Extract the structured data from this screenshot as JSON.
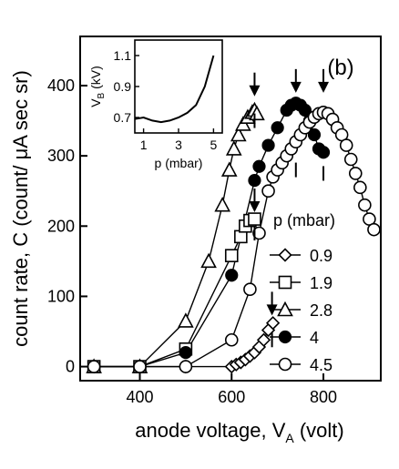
{
  "chart_data": [
    {
      "type": "scatter",
      "panel_label": "(b)",
      "xlabel": "anode voltage, V",
      "xlabel_sub": "A",
      "xlabel_unit": "(volt)",
      "ylabel": "count rate, C (count/ μA sec sr)",
      "xlim": [
        270,
        925
      ],
      "ylim": [
        -20,
        470
      ],
      "xticks": [
        400,
        600,
        800
      ],
      "yticks": [
        0,
        100,
        200,
        300,
        400
      ],
      "legend": {
        "title": "p (mbar)",
        "position": "right"
      },
      "series": [
        {
          "name": "0.9",
          "marker": "diamond-open",
          "x": [
            300,
            400,
            500,
            600,
            610,
            620,
            630,
            640,
            650,
            660,
            670,
            680,
            690
          ],
          "y": [
            0,
            0,
            0,
            0,
            3,
            6,
            10,
            15,
            20,
            28,
            38,
            52,
            62
          ],
          "arrow_x": 688,
          "arrow_y": 78,
          "errbar": {
            "x": 688,
            "y": 38
          }
        },
        {
          "name": "1.9",
          "marker": "square-open",
          "x": [
            300,
            400,
            500,
            600,
            620,
            630,
            640,
            650
          ],
          "y": [
            0,
            0,
            25,
            158,
            185,
            200,
            208,
            210
          ],
          "arrow_x": 650,
          "arrow_y": 225,
          "errbar": {
            "x": 650,
            "y": 190
          }
        },
        {
          "name": "2.8",
          "marker": "triangle-open",
          "x": [
            300,
            400,
            500,
            550,
            580,
            595,
            605,
            615,
            625,
            635,
            645,
            650,
            655
          ],
          "y": [
            0,
            0,
            65,
            150,
            230,
            280,
            310,
            330,
            345,
            355,
            362,
            365,
            360
          ],
          "arrow_x": 650,
          "arrow_y": 390,
          "errbar": {
            "x": 650,
            "y": 350
          }
        },
        {
          "name": "4",
          "marker": "circle-filled",
          "x": [
            300,
            400,
            500,
            600,
            650,
            660,
            680,
            700,
            720,
            730,
            740,
            750,
            760,
            770,
            780,
            790,
            800
          ],
          "y": [
            0,
            0,
            20,
            130,
            265,
            285,
            315,
            340,
            365,
            372,
            375,
            372,
            365,
            350,
            330,
            310,
            305
          ],
          "arrow_x": 740,
          "arrow_y": 395,
          "errbar": {
            "x": 740,
            "y": 280
          }
        },
        {
          "name": "4.5",
          "marker": "circle-open",
          "x": [
            300,
            400,
            500,
            600,
            640,
            660,
            680,
            690,
            700,
            710,
            720,
            730,
            740,
            750,
            760,
            770,
            780,
            790,
            800,
            810,
            820,
            830,
            840,
            850,
            860,
            870,
            880,
            890,
            900,
            910
          ],
          "y": [
            0,
            0,
            0,
            38,
            110,
            190,
            250,
            270,
            280,
            290,
            300,
            310,
            320,
            330,
            340,
            348,
            355,
            360,
            362,
            360,
            352,
            340,
            330,
            315,
            295,
            275,
            255,
            230,
            210,
            195
          ],
          "arrow_x": 800,
          "arrow_y": 395,
          "errbar": {
            "x": 800,
            "y": 275
          }
        }
      ]
    },
    {
      "type": "line",
      "role": "inset",
      "xlabel": "p (mbar)",
      "ylabel": "V",
      "ylabel_sub": "B",
      "ylabel_unit": "(kV)",
      "xlim": [
        0.5,
        5.5
      ],
      "ylim": [
        0.6,
        1.2
      ],
      "xticks": [
        1,
        3,
        5
      ],
      "yticks": [
        0.7,
        0.9,
        1.1
      ],
      "x": [
        0.5,
        1.0,
        1.5,
        2.0,
        2.5,
        3.0,
        3.5,
        4.0,
        4.5,
        5.0
      ],
      "y": [
        0.69,
        0.7,
        0.68,
        0.67,
        0.68,
        0.7,
        0.73,
        0.78,
        0.9,
        1.1
      ]
    }
  ]
}
